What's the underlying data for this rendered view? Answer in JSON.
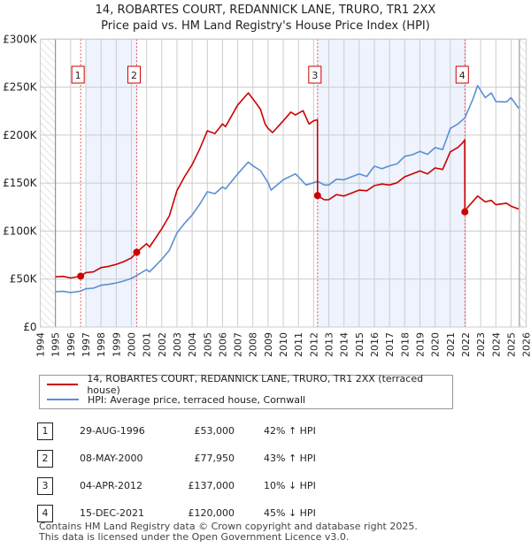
{
  "title_line1": "14, ROBARTES COURT, REDANNICK LANE, TRURO, TR1 2XX",
  "title_line2": "Price paid vs. HM Land Registry's House Price Index (HPI)",
  "colors": {
    "property": "#cc0000",
    "hpi": "#5b8fd4",
    "shade": "#eef3fd",
    "grid": "#cccccc"
  },
  "chart_data": {
    "type": "line",
    "title": "14, ROBARTES COURT, REDANNICK LANE, TRURO, TR1 2XX - Price paid vs. HM Land Registry's House Price Index (HPI)",
    "xlim": [
      1994,
      2026
    ],
    "ylim": [
      0,
      300000
    ],
    "x_ticks": [
      "1994",
      "1995",
      "1996",
      "1997",
      "1998",
      "1999",
      "2000",
      "2001",
      "2002",
      "2003",
      "2004",
      "2005",
      "2006",
      "2007",
      "2008",
      "2009",
      "2010",
      "2011",
      "2012",
      "2013",
      "2014",
      "2015",
      "2016",
      "2017",
      "2018",
      "2019",
      "2020",
      "2021",
      "2022",
      "2023",
      "2024",
      "2025",
      "2026"
    ],
    "y_ticks": [
      {
        "v": 0,
        "label": "£0"
      },
      {
        "v": 50000,
        "label": "£50K"
      },
      {
        "v": 100000,
        "label": "£100K"
      },
      {
        "v": 150000,
        "label": "£150K"
      },
      {
        "v": 200000,
        "label": "£200K"
      },
      {
        "v": 250000,
        "label": "£250K"
      },
      {
        "v": 300000,
        "label": "£300K"
      }
    ],
    "grid": true,
    "hatched_ranges": [
      [
        1994,
        1995
      ],
      [
        2025.55,
        2026
      ]
    ],
    "shaded_ranges": [
      [
        1997.0,
        2000.35
      ],
      [
        2012.26,
        2021.96
      ]
    ],
    "series": [
      {
        "name": "14, ROBARTES COURT, REDANNICK LANE, TRURO, TR1 2XX (terraced house)",
        "color": "#cc0000",
        "points": [
          [
            1995.0,
            52300
          ],
          [
            1995.5,
            52800
          ],
          [
            1996.0,
            51100
          ],
          [
            1996.66,
            53000
          ],
          [
            1997.0,
            56700
          ],
          [
            1997.5,
            57500
          ],
          [
            1998.0,
            61900
          ],
          [
            1998.5,
            63200
          ],
          [
            1999.0,
            65300
          ],
          [
            1999.5,
            68200
          ],
          [
            2000.0,
            72000
          ],
          [
            2000.35,
            77950
          ],
          [
            2001.0,
            86900
          ],
          [
            2001.2,
            83400
          ],
          [
            2002.0,
            102400
          ],
          [
            2002.5,
            116000
          ],
          [
            2003.0,
            142100
          ],
          [
            2003.5,
            156600
          ],
          [
            2004.0,
            169200
          ],
          [
            2004.5,
            185600
          ],
          [
            2005.0,
            204500
          ],
          [
            2005.5,
            201600
          ],
          [
            2006.0,
            211700
          ],
          [
            2006.2,
            208800
          ],
          [
            2007.0,
            231400
          ],
          [
            2007.7,
            244000
          ],
          [
            2008.0,
            237900
          ],
          [
            2008.5,
            227000
          ],
          [
            2008.8,
            211800
          ],
          [
            2009.0,
            207000
          ],
          [
            2009.3,
            202600
          ],
          [
            2010.0,
            214900
          ],
          [
            2010.5,
            224000
          ],
          [
            2010.8,
            221000
          ],
          [
            2011.3,
            225500
          ],
          [
            2011.7,
            211600
          ],
          [
            2012.0,
            215000
          ],
          [
            2012.25,
            216000
          ],
          [
            2012.26,
            137000
          ],
          [
            2012.7,
            132600
          ],
          [
            2013.0,
            132600
          ],
          [
            2013.5,
            138000
          ],
          [
            2014.0,
            136500
          ],
          [
            2014.5,
            139600
          ],
          [
            2015.0,
            142700
          ],
          [
            2015.5,
            142000
          ],
          [
            2016.0,
            147400
          ],
          [
            2016.5,
            149000
          ],
          [
            2017.0,
            148000
          ],
          [
            2017.5,
            150400
          ],
          [
            2018.0,
            156600
          ],
          [
            2018.5,
            159600
          ],
          [
            2019.0,
            162700
          ],
          [
            2019.5,
            159600
          ],
          [
            2020.0,
            165800
          ],
          [
            2020.5,
            164200
          ],
          [
            2021.0,
            182600
          ],
          [
            2021.5,
            187200
          ],
          [
            2021.8,
            191800
          ],
          [
            2021.95,
            194900
          ],
          [
            2021.96,
            120000
          ],
          [
            2022.1,
            124000
          ],
          [
            2022.8,
            136500
          ],
          [
            2023.3,
            130400
          ],
          [
            2023.7,
            132000
          ],
          [
            2024.0,
            127500
          ],
          [
            2024.7,
            129000
          ],
          [
            2025.0,
            126000
          ],
          [
            2025.5,
            123000
          ]
        ]
      },
      {
        "name": "HPI: Average price, terraced house, Cornwall",
        "color": "#5b8fd4",
        "points": [
          [
            1995.0,
            36800
          ],
          [
            1995.5,
            37200
          ],
          [
            1996.0,
            36000
          ],
          [
            1996.66,
            37400
          ],
          [
            1997.0,
            39900
          ],
          [
            1997.5,
            40500
          ],
          [
            1998.0,
            43600
          ],
          [
            1998.5,
            44500
          ],
          [
            1999.0,
            46000
          ],
          [
            1999.5,
            48000
          ],
          [
            2000.0,
            50700
          ],
          [
            2000.35,
            53700
          ],
          [
            2001.0,
            59900
          ],
          [
            2001.2,
            57500
          ],
          [
            2002.0,
            70600
          ],
          [
            2002.5,
            80000
          ],
          [
            2003.0,
            98000
          ],
          [
            2003.5,
            108000
          ],
          [
            2004.0,
            116700
          ],
          [
            2004.5,
            128000
          ],
          [
            2005.0,
            141000
          ],
          [
            2005.5,
            139000
          ],
          [
            2006.0,
            146000
          ],
          [
            2006.2,
            144000
          ],
          [
            2007.0,
            159600
          ],
          [
            2007.7,
            172000
          ],
          [
            2008.0,
            168000
          ],
          [
            2008.5,
            163000
          ],
          [
            2009.0,
            150400
          ],
          [
            2009.2,
            142800
          ],
          [
            2010.0,
            153500
          ],
          [
            2010.8,
            159600
          ],
          [
            2011.0,
            156600
          ],
          [
            2011.5,
            148000
          ],
          [
            2012.0,
            150400
          ],
          [
            2012.26,
            152000
          ],
          [
            2012.7,
            148000
          ],
          [
            2013.0,
            148000
          ],
          [
            2013.5,
            154000
          ],
          [
            2014.0,
            153500
          ],
          [
            2015.0,
            159600
          ],
          [
            2015.5,
            157000
          ],
          [
            2016.0,
            167600
          ],
          [
            2016.5,
            165000
          ],
          [
            2017.0,
            168000
          ],
          [
            2017.5,
            170000
          ],
          [
            2018.0,
            178000
          ],
          [
            2018.5,
            179500
          ],
          [
            2019.0,
            183000
          ],
          [
            2019.5,
            180000
          ],
          [
            2020.0,
            187000
          ],
          [
            2020.5,
            185000
          ],
          [
            2021.0,
            207000
          ],
          [
            2021.5,
            211600
          ],
          [
            2021.96,
            218000
          ],
          [
            2022.5,
            237800
          ],
          [
            2022.8,
            251600
          ],
          [
            2023.3,
            239000
          ],
          [
            2023.7,
            244000
          ],
          [
            2024.0,
            235000
          ],
          [
            2024.7,
            234600
          ],
          [
            2025.0,
            239000
          ],
          [
            2025.5,
            228000
          ]
        ]
      }
    ],
    "sales": [
      {
        "num": "1",
        "x": 1996.66,
        "value": 53000
      },
      {
        "num": "2",
        "x": 2000.35,
        "value": 77950
      },
      {
        "num": "3",
        "x": 2012.26,
        "value": 137000
      },
      {
        "num": "4",
        "x": 2021.96,
        "value": 120000
      }
    ],
    "legend_position": "below"
  },
  "legend": {
    "property": "14, ROBARTES COURT, REDANNICK LANE, TRURO, TR1 2XX (terraced house)",
    "hpi": "HPI: Average price, terraced house, Cornwall"
  },
  "transactions": [
    {
      "num": "1",
      "date": "29-AUG-1996",
      "price": "£53,000",
      "pct": "42% ↑ HPI"
    },
    {
      "num": "2",
      "date": "08-MAY-2000",
      "price": "£77,950",
      "pct": "43% ↑ HPI"
    },
    {
      "num": "3",
      "date": "04-APR-2012",
      "price": "£137,000",
      "pct": "10% ↓ HPI"
    },
    {
      "num": "4",
      "date": "15-DEC-2021",
      "price": "£120,000",
      "pct": "45% ↓ HPI"
    }
  ],
  "footer_line1": "Contains HM Land Registry data © Crown copyright and database right 2025.",
  "footer_line2": "This data is licensed under the Open Government Licence v3.0."
}
